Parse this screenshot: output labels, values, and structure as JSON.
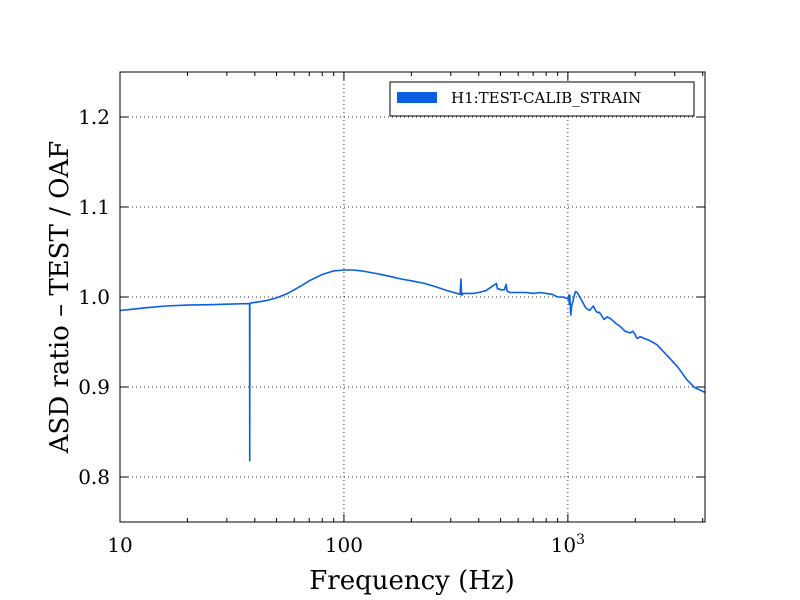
{
  "chart_data": {
    "type": "line",
    "xlabel": "Frequency (Hz)",
    "ylabel": "ASD ratio – TEST / OAF",
    "xscale": "log",
    "xlim": [
      10,
      4096
    ],
    "ylim": [
      0.75,
      1.25
    ],
    "x_ticks": [
      {
        "value": 10,
        "label": "10"
      },
      {
        "value": 100,
        "label": "100"
      },
      {
        "value": 1000,
        "label": "10",
        "sup": "3"
      }
    ],
    "y_ticks": [
      {
        "value": 0.8,
        "label": "0.8"
      },
      {
        "value": 0.9,
        "label": "0.9"
      },
      {
        "value": 1.0,
        "label": "1.0"
      },
      {
        "value": 1.1,
        "label": "1.1"
      },
      {
        "value": 1.2,
        "label": "1.2"
      }
    ],
    "grid": true,
    "legend_position": "top-right",
    "series": [
      {
        "name": "H1:TEST-CALIB_STRAIN",
        "color": "#0a5fe0",
        "x": [
          10,
          11,
          13,
          16,
          20,
          25,
          30,
          35,
          37.9,
          37.95,
          38.0,
          38.05,
          38.1,
          40,
          45,
          50,
          55,
          60,
          65,
          70,
          80,
          90,
          100,
          110,
          120,
          140,
          160,
          180,
          200,
          230,
          260,
          290,
          320,
          330,
          333,
          335,
          337,
          340,
          345,
          360,
          380,
          400,
          430,
          460,
          480,
          485,
          490,
          495,
          500,
          520,
          530,
          535,
          540,
          550,
          570,
          600,
          650,
          700,
          750,
          800,
          850,
          900,
          950,
          1000,
          1010,
          1015,
          1020,
          1030,
          1040,
          1060,
          1080,
          1100,
          1130,
          1160,
          1200,
          1250,
          1300,
          1330,
          1350,
          1380,
          1400,
          1450,
          1500,
          1550,
          1600,
          1650,
          1700,
          1800,
          1900,
          1950,
          2000,
          2020,
          2050,
          2100,
          2300,
          2500,
          2800,
          3100,
          3400,
          3700,
          4096
        ],
        "y": [
          0.985,
          0.986,
          0.988,
          0.99,
          0.991,
          0.9915,
          0.992,
          0.9925,
          0.9927,
          0.818,
          0.993,
          0.993,
          0.9932,
          0.994,
          0.996,
          0.999,
          1.003,
          1.008,
          1.013,
          1.018,
          1.025,
          1.029,
          1.03,
          1.03,
          1.029,
          1.026,
          1.023,
          1.02,
          1.018,
          1.015,
          1.011,
          1.007,
          1.004,
          1.003,
          1.02,
          1.003,
          1.002,
          1.004,
          1.004,
          1.004,
          1.004,
          1.005,
          1.007,
          1.012,
          1.015,
          1.009,
          1.009,
          1.009,
          1.008,
          1.008,
          1.014,
          1.007,
          1.006,
          1.005,
          1.005,
          1.005,
          1.005,
          1.004,
          1.005,
          1.004,
          1.003,
          1.0,
          1.0,
          0.998,
          1.002,
          0.992,
          1.002,
          0.98,
          0.99,
          0.998,
          1.006,
          1.005,
          1.0,
          0.995,
          0.988,
          0.985,
          0.99,
          0.985,
          0.983,
          0.983,
          0.981,
          0.975,
          0.978,
          0.976,
          0.973,
          0.97,
          0.968,
          0.962,
          0.96,
          0.962,
          0.958,
          0.955,
          0.954,
          0.956,
          0.952,
          0.947,
          0.934,
          0.922,
          0.908,
          0.899,
          0.894
        ]
      }
    ]
  }
}
